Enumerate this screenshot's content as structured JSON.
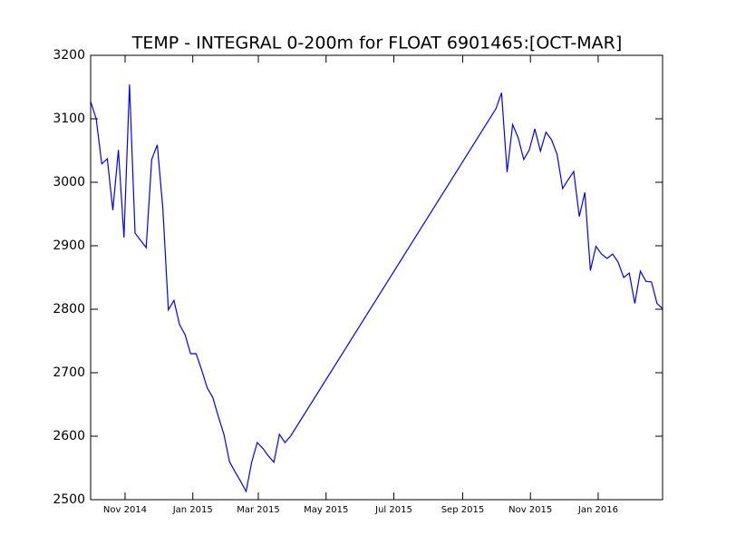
{
  "chart_data": {
    "type": "line",
    "title": "TEMP - INTEGRAL 0-200m for FLOAT 6901465:[OCT-MAR]",
    "x": [
      "2014-10-01",
      "2014-10-06",
      "2014-10-11",
      "2014-10-16",
      "2014-10-21",
      "2014-10-26",
      "2014-10-31",
      "2014-11-05",
      "2014-11-10",
      "2014-11-20",
      "2014-11-25",
      "2014-11-30",
      "2014-12-05",
      "2014-12-10",
      "2014-12-15",
      "2014-12-20",
      "2014-12-25",
      "2014-12-30",
      "2015-01-04",
      "2015-01-09",
      "2015-01-14",
      "2015-01-19",
      "2015-01-24",
      "2015-01-29",
      "2015-02-03",
      "2015-02-08",
      "2015-02-13",
      "2015-02-18",
      "2015-02-23",
      "2015-02-28",
      "2015-03-05",
      "2015-03-10",
      "2015-03-15",
      "2015-03-20",
      "2015-03-25",
      "2015-03-30",
      "2015-10-01",
      "2015-10-06",
      "2015-10-11",
      "2015-10-16",
      "2015-10-21",
      "2015-10-26",
      "2015-10-31",
      "2015-11-05",
      "2015-11-10",
      "2015-11-15",
      "2015-11-20",
      "2015-11-25",
      "2015-11-30",
      "2015-12-05",
      "2015-12-10",
      "2015-12-15",
      "2015-12-20",
      "2015-12-25",
      "2015-12-30",
      "2016-01-04",
      "2016-01-09",
      "2016-01-14",
      "2016-01-19",
      "2016-01-24",
      "2016-01-29",
      "2016-02-03",
      "2016-02-08",
      "2016-02-13",
      "2016-02-18",
      "2016-02-23",
      "2016-02-28"
    ],
    "series": [
      {
        "name": "TEMP",
        "color": "#0000ff",
        "values": [
          3127,
          3100,
          3029,
          3037,
          2956,
          3051,
          2913,
          3154,
          2920,
          2897,
          3036,
          3059,
          2959,
          2799,
          2814,
          2776,
          2760,
          2730,
          2730,
          2704,
          2676,
          2661,
          2631,
          2603,
          2560,
          2544,
          2529,
          2513,
          2559,
          2590,
          2581,
          2569,
          2559,
          2603,
          2590,
          2600,
          3116,
          3141,
          3016,
          3091,
          3070,
          3036,
          3051,
          3084,
          3049,
          3079,
          3067,
          3044,
          2990,
          3004,
          3017,
          2946,
          2984,
          2861,
          2899,
          2887,
          2880,
          2887,
          2874,
          2850,
          2857,
          2809,
          2860,
          2844,
          2843,
          2809,
          2801
        ]
      }
    ],
    "xlim": [
      "2014-10-01",
      "2016-02-28"
    ],
    "xticks": [
      {
        "value": "2014-11-01",
        "label": "Nov 2014"
      },
      {
        "value": "2015-01-01",
        "label": "Jan 2015"
      },
      {
        "value": "2015-03-01",
        "label": "Mar 2015"
      },
      {
        "value": "2015-05-01",
        "label": "May 2015"
      },
      {
        "value": "2015-07-01",
        "label": "Jul 2015"
      },
      {
        "value": "2015-09-01",
        "label": "Sep 2015"
      },
      {
        "value": "2015-11-01",
        "label": "Nov 2015"
      },
      {
        "value": "2016-01-01",
        "label": "Jan 2016"
      }
    ],
    "ylim": [
      2500,
      3200
    ],
    "yticks": [
      2500,
      2600,
      2700,
      2800,
      2900,
      3000,
      3100,
      3200
    ],
    "grid": false
  }
}
